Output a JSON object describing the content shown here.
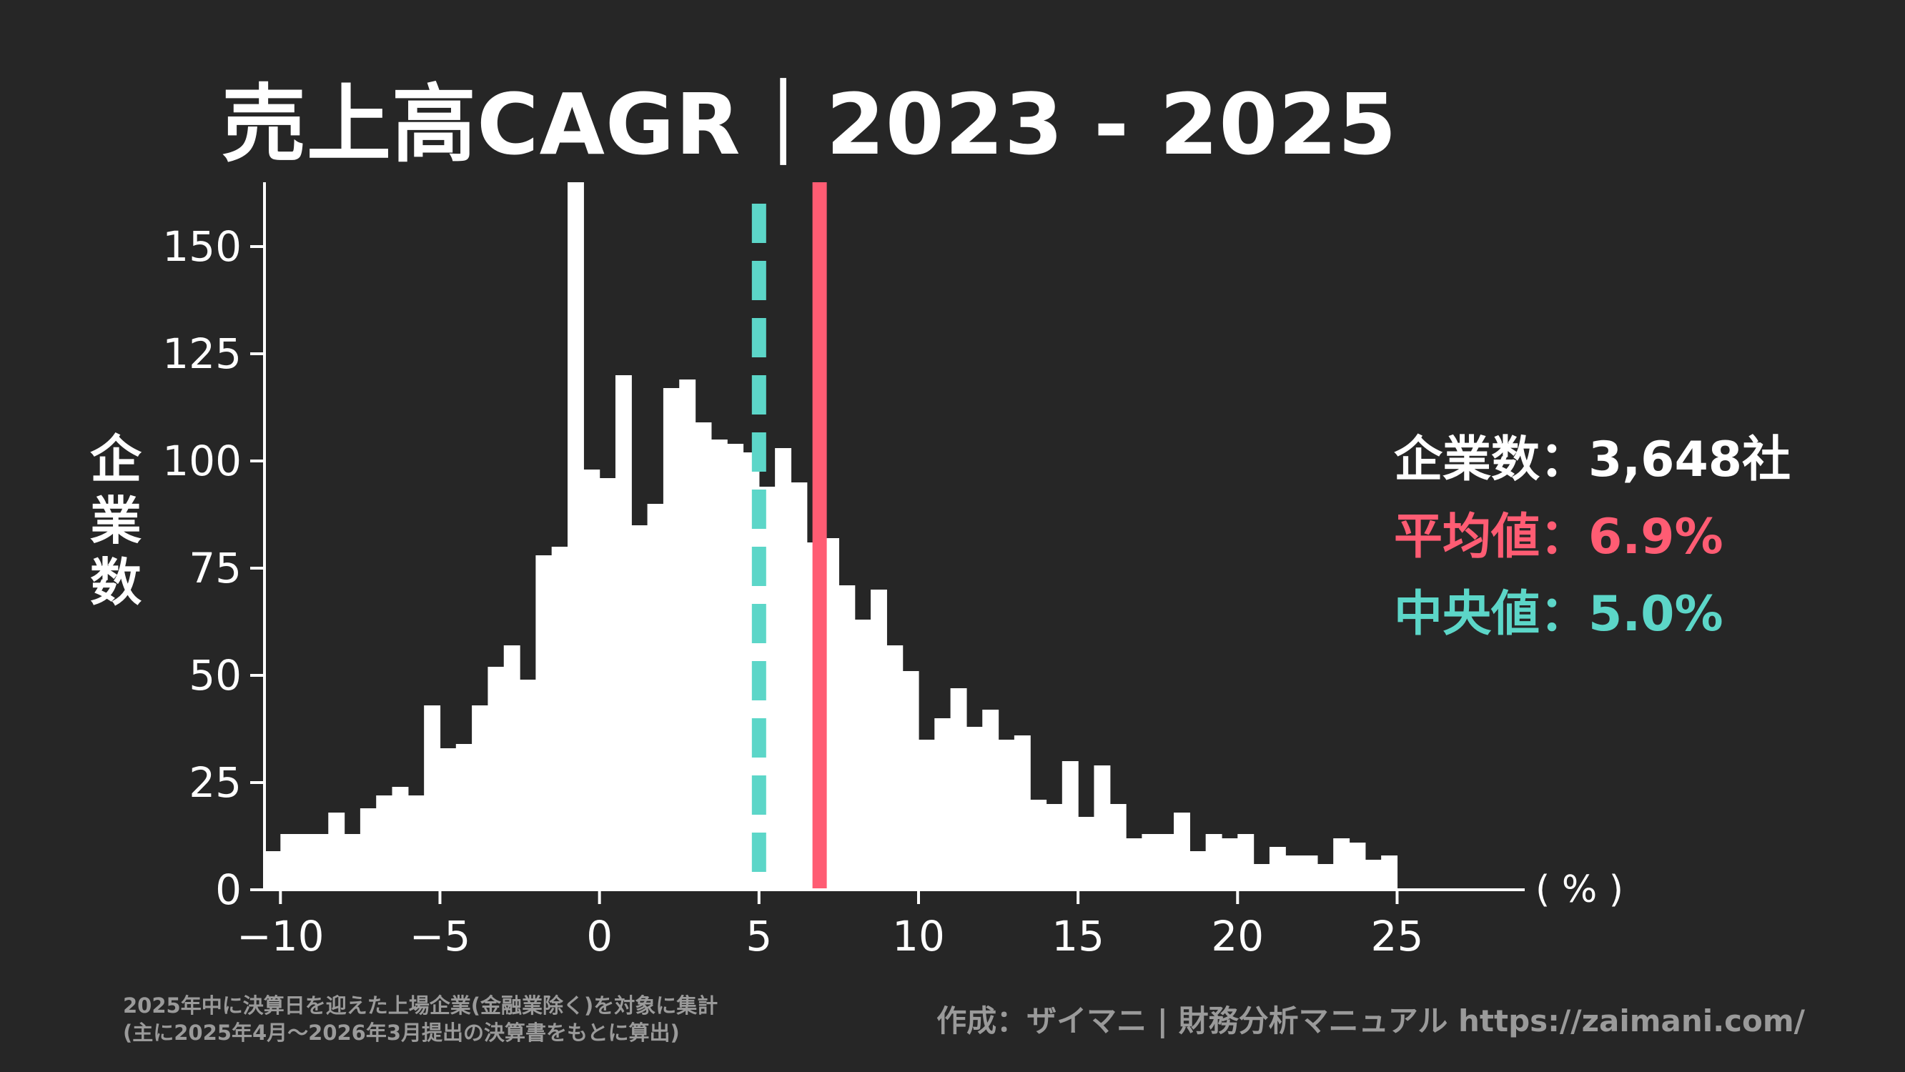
{
  "title": "売上高CAGR｜2023 - 2025",
  "ylabel": [
    "企",
    "業",
    "数"
  ],
  "unit_label": "( % )",
  "stats": {
    "count": "企業数：3,648社",
    "mean": "平均値：6.9%",
    "median": "中央値：5.0%"
  },
  "footnote": {
    "line1": "2025年中に決算日を迎えた上場企業(金融業除く)を対象に集計",
    "line2": "(主に2025年4月～2026年3月提出の決算書をもとに算出)"
  },
  "credit": "作成：ザイマニ | 財務分析マニュアル https://zaimani.com/",
  "colors": {
    "background": "#262626",
    "bars": "#ffffff",
    "mean": "#ff5c73",
    "median": "#5cd6c8"
  },
  "chart_data": {
    "type": "bar",
    "subtype": "histogram",
    "title": "売上高CAGR｜2023 - 2025",
    "xlabel": "( % )",
    "ylabel": "企業数",
    "xlim": [
      -10.5,
      29
    ],
    "ylim": [
      0,
      165
    ],
    "xticks": [
      -10,
      -5,
      0,
      5,
      10,
      15,
      20,
      25
    ],
    "xtick_labels": [
      "−10",
      "−5",
      "0",
      "5",
      "10",
      "15",
      "20",
      "25"
    ],
    "yticks": [
      0,
      25,
      50,
      75,
      100,
      125,
      150
    ],
    "bin_width": 0.5,
    "bin_start": -10.5,
    "values": [
      9,
      13,
      13,
      13,
      18,
      13,
      19,
      22,
      24,
      22,
      43,
      33,
      34,
      43,
      52,
      57,
      49,
      78,
      80,
      165,
      98,
      96,
      120,
      85,
      90,
      117,
      119,
      109,
      105,
      104,
      102,
      94,
      103,
      95,
      81,
      82,
      71,
      63,
      70,
      57,
      51,
      35,
      40,
      47,
      38,
      42,
      35,
      36,
      21,
      20,
      30,
      17,
      29,
      20,
      12,
      13,
      13,
      18,
      9,
      13,
      12,
      13,
      6,
      10,
      8,
      8,
      6,
      12,
      11,
      7,
      8
    ],
    "mean": 6.9,
    "median": 5.0,
    "grid": false,
    "legend": "right"
  }
}
